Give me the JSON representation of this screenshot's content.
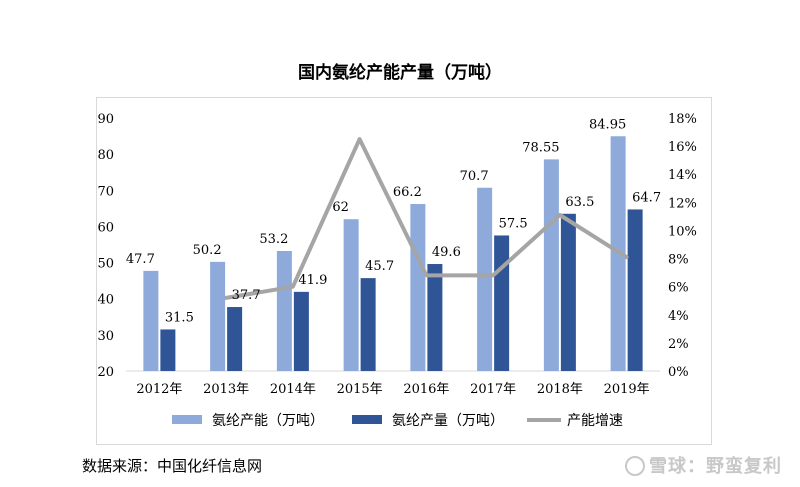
{
  "chart_data": {
    "type": "bar",
    "title": "国内氨纶产能产量（万吨）",
    "categories": [
      "2012年",
      "2013年",
      "2014年",
      "2015年",
      "2016年",
      "2017年",
      "2018年",
      "2019年"
    ],
    "series": [
      {
        "name": "氨纶产能（万吨）",
        "kind": "bar",
        "axis": "left",
        "color": "#8eaadb",
        "values": [
          47.7,
          50.2,
          53.2,
          62,
          66.2,
          70.7,
          78.55,
          84.95
        ]
      },
      {
        "name": "氨纶产量（万吨）",
        "kind": "bar",
        "axis": "left",
        "color": "#2f5597",
        "values": [
          31.5,
          37.7,
          41.9,
          45.7,
          49.6,
          57.5,
          63.5,
          64.7
        ]
      },
      {
        "name": "产能增速",
        "kind": "line",
        "axis": "right",
        "color": "#a5a5a5",
        "values": [
          null,
          5.2,
          6.0,
          16.5,
          6.8,
          6.8,
          11.1,
          8.1
        ]
      }
    ],
    "ylim": [
      20,
      90
    ],
    "yticks": [
      "20",
      "30",
      "40",
      "50",
      "60",
      "70",
      "80",
      "90"
    ],
    "y2lim": [
      0,
      18
    ],
    "y2ticks": [
      "0%",
      "2%",
      "4%",
      "6%",
      "8%",
      "10%",
      "12%",
      "14%",
      "16%",
      "18%"
    ],
    "legend": "bottom",
    "grid": false
  },
  "source": "数据来源：中国化纤信息网",
  "watermark": "雪球：野蛮复利"
}
